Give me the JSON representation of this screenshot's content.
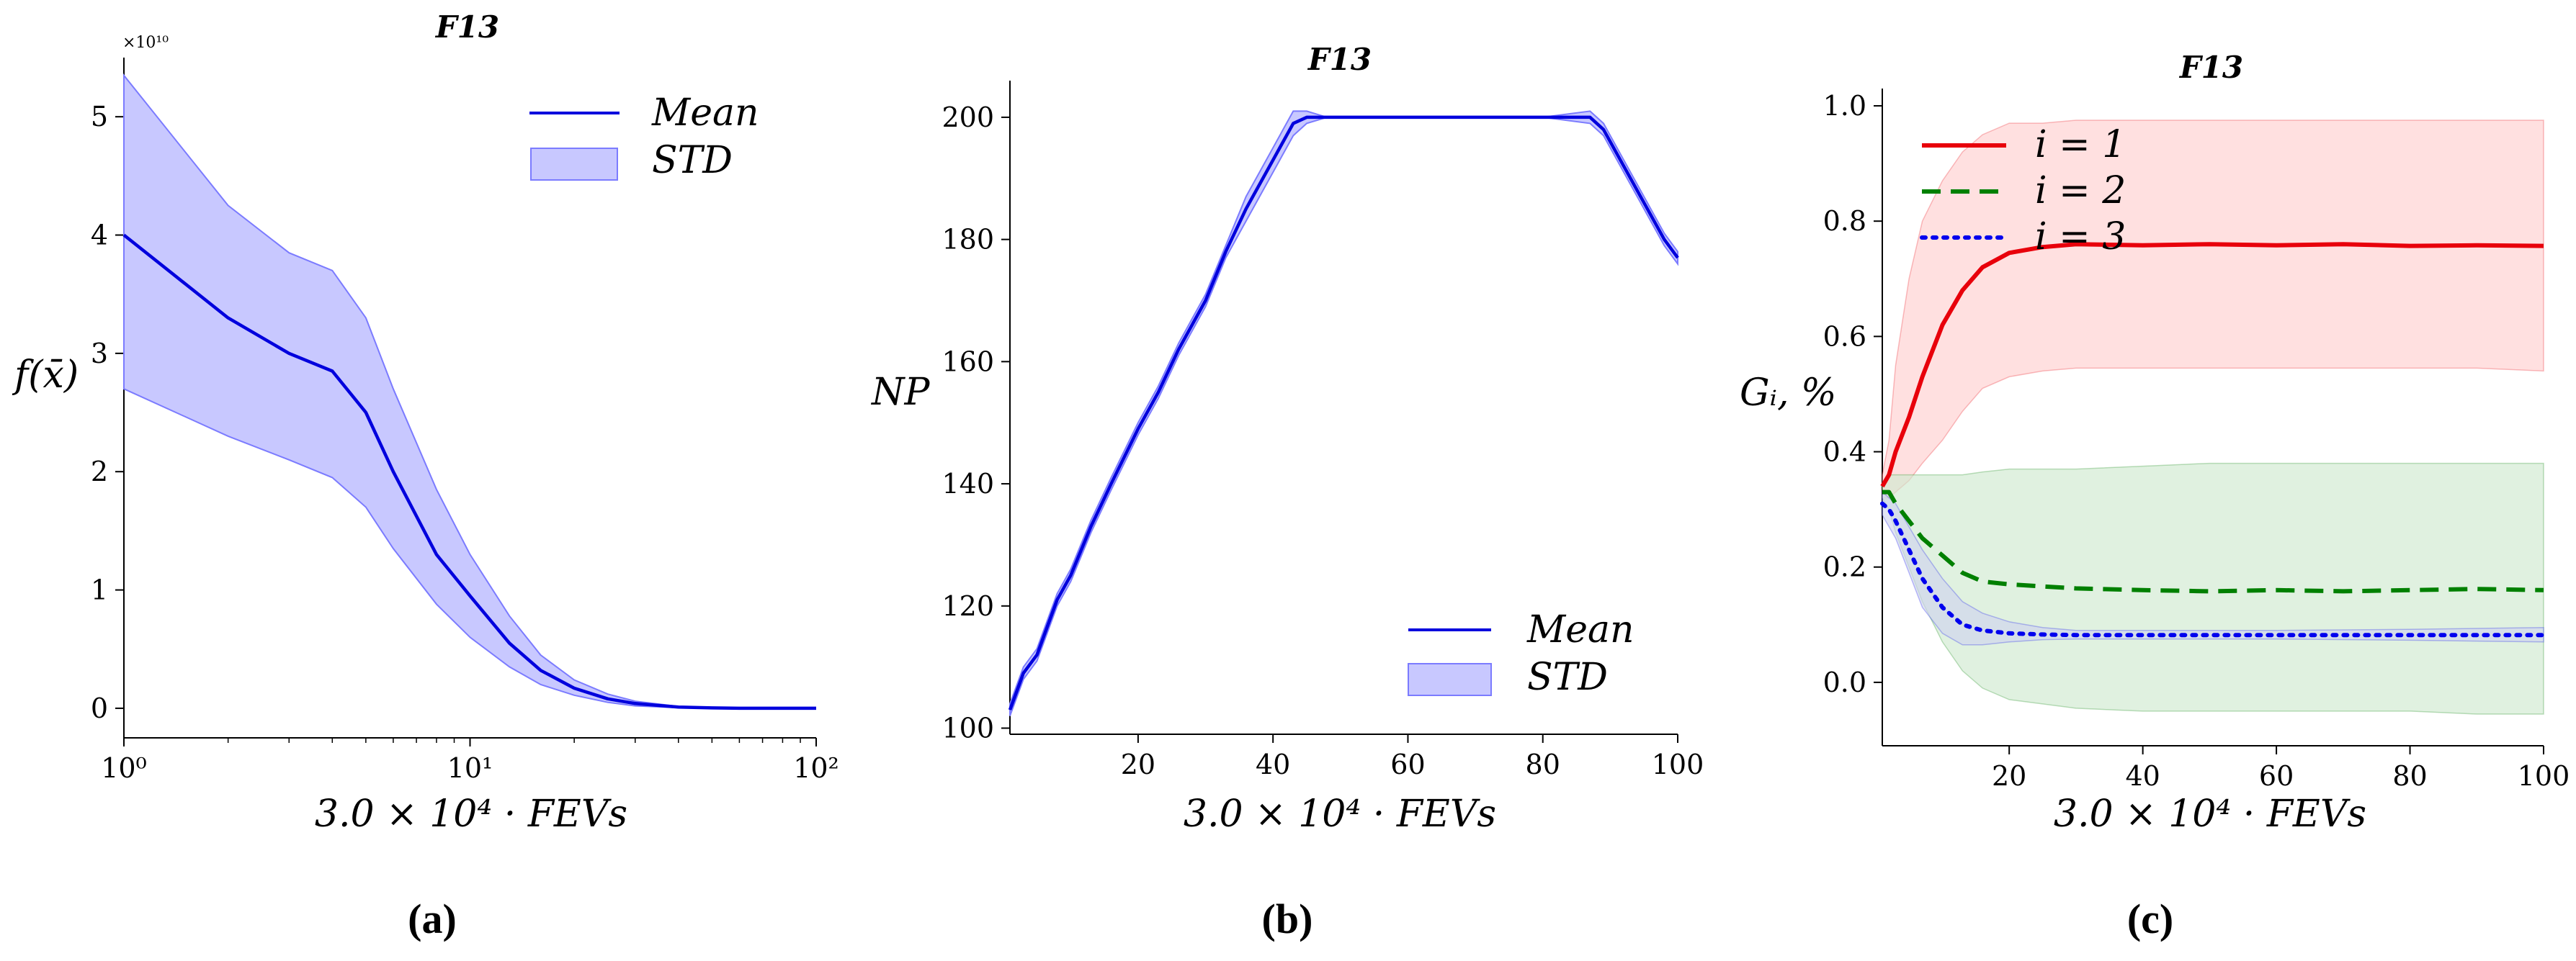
{
  "figure": {
    "captions": [
      "(a)",
      "(b)",
      "(c)"
    ]
  },
  "chart_data": [
    {
      "type": "line",
      "panel": "a",
      "title": "F13",
      "xlabel": "3.0 × 10⁴ · FEVs",
      "ylabel": "f(x̄)",
      "y_multiplier": "×10¹⁰",
      "xscale": "log",
      "xlim": [
        1,
        100
      ],
      "ylim": [
        -0.25,
        5.5
      ],
      "xticks": [
        {
          "v": 1,
          "label": "10⁰"
        },
        {
          "v": 10,
          "label": "10¹"
        },
        {
          "v": 100,
          "label": "10²"
        }
      ],
      "yticks": [
        {
          "v": 0,
          "label": "0"
        },
        {
          "v": 1,
          "label": "1"
        },
        {
          "v": 2,
          "label": "2"
        },
        {
          "v": 3,
          "label": "3"
        },
        {
          "v": 4,
          "label": "4"
        },
        {
          "v": 5,
          "label": "5"
        }
      ],
      "legend": {
        "position": "top-right",
        "entries": [
          "Mean",
          "STD"
        ]
      },
      "line_color": "#0000dd",
      "band_color": "#7b7bff",
      "x": [
        1,
        2,
        3,
        4,
        5,
        6,
        8,
        10,
        13,
        16,
        20,
        25,
        30,
        40,
        50,
        60,
        100
      ],
      "mean": [
        4.0,
        3.3,
        3.0,
        2.85,
        2.5,
        2.0,
        1.3,
        0.95,
        0.55,
        0.32,
        0.17,
        0.08,
        0.04,
        0.01,
        0.003,
        0.0,
        0.0
      ],
      "upper": [
        5.35,
        4.25,
        3.85,
        3.7,
        3.3,
        2.7,
        1.85,
        1.3,
        0.78,
        0.45,
        0.24,
        0.12,
        0.06,
        0.015,
        0.005,
        0.0,
        0.0
      ],
      "lower": [
        2.7,
        2.3,
        2.1,
        1.95,
        1.7,
        1.35,
        0.88,
        0.6,
        0.35,
        0.2,
        0.11,
        0.05,
        0.02,
        0.005,
        0.001,
        0.0,
        0.0
      ]
    },
    {
      "type": "line",
      "panel": "b",
      "title": "F13",
      "xlabel": "3.0 × 10⁴ · FEVs",
      "ylabel": "NP",
      "xlim": [
        1,
        100
      ],
      "ylim": [
        99,
        206
      ],
      "xticks": [
        {
          "v": 20,
          "label": "20"
        },
        {
          "v": 40,
          "label": "40"
        },
        {
          "v": 60,
          "label": "60"
        },
        {
          "v": 80,
          "label": "80"
        },
        {
          "v": 100,
          "label": "100"
        }
      ],
      "yticks": [
        {
          "v": 100,
          "label": "100"
        },
        {
          "v": 120,
          "label": "120"
        },
        {
          "v": 140,
          "label": "140"
        },
        {
          "v": 160,
          "label": "160"
        },
        {
          "v": 180,
          "label": "180"
        },
        {
          "v": 200,
          "label": "200"
        }
      ],
      "legend": {
        "position": "bottom-right",
        "entries": [
          "Mean",
          "STD"
        ]
      },
      "line_color": "#0000dd",
      "band_color": "#7b7bff",
      "x": [
        1,
        3,
        5,
        8,
        10,
        13,
        16,
        20,
        23,
        26,
        30,
        33,
        36,
        40,
        43,
        45,
        48,
        60,
        80,
        87,
        89,
        92,
        95,
        98,
        100
      ],
      "mean": [
        103,
        109,
        112,
        121,
        125,
        133,
        140,
        149,
        155,
        162,
        170,
        178,
        185,
        193,
        199,
        200,
        200,
        200,
        200,
        200,
        198,
        192,
        186,
        180,
        177
      ],
      "upper": [
        104,
        110,
        113,
        122,
        126,
        134,
        141,
        150,
        156,
        163,
        171,
        179,
        187,
        195,
        201,
        201,
        200,
        200,
        200,
        201,
        199,
        193,
        187,
        181,
        178
      ],
      "lower": [
        102,
        108,
        111,
        120,
        124,
        132,
        139,
        148,
        154,
        161,
        169,
        177,
        183,
        191,
        197,
        199,
        200,
        200,
        200,
        199,
        197,
        191,
        185,
        179,
        176
      ]
    },
    {
      "type": "line",
      "panel": "c",
      "title": "F13",
      "xlabel": "3.0 × 10⁴ · FEVs",
      "ylabel": "Gᵢ, %",
      "xlim": [
        1,
        100
      ],
      "ylim": [
        -0.11,
        1.03
      ],
      "xticks": [
        {
          "v": 20,
          "label": "20"
        },
        {
          "v": 40,
          "label": "40"
        },
        {
          "v": 60,
          "label": "60"
        },
        {
          "v": 80,
          "label": "80"
        },
        {
          "v": 100,
          "label": "100"
        }
      ],
      "yticks": [
        {
          "v": 0.0,
          "label": "0.0"
        },
        {
          "v": 0.2,
          "label": "0.2"
        },
        {
          "v": 0.4,
          "label": "0.4"
        },
        {
          "v": 0.6,
          "label": "0.6"
        },
        {
          "v": 0.8,
          "label": "0.8"
        },
        {
          "v": 1.0,
          "label": "1.0"
        }
      ],
      "legend": {
        "position": "top-left",
        "entries": [
          "i = 1",
          "i = 2",
          "i = 3"
        ]
      },
      "series": [
        {
          "name": "i = 1",
          "color": "#e8000b",
          "band_color": "#ffcfcf",
          "dash": "solid",
          "x": [
            1,
            2,
            3,
            5,
            7,
            10,
            13,
            16,
            20,
            25,
            30,
            40,
            50,
            60,
            70,
            80,
            90,
            100
          ],
          "mean": [
            0.34,
            0.36,
            0.4,
            0.46,
            0.53,
            0.62,
            0.68,
            0.72,
            0.745,
            0.755,
            0.76,
            0.758,
            0.76,
            0.758,
            0.76,
            0.757,
            0.758,
            0.757
          ],
          "upper": [
            0.36,
            0.42,
            0.55,
            0.7,
            0.8,
            0.87,
            0.92,
            0.95,
            0.97,
            0.97,
            0.975,
            0.975,
            0.975,
            0.975,
            0.975,
            0.975,
            0.975,
            0.975
          ],
          "lower": [
            0.32,
            0.32,
            0.33,
            0.35,
            0.38,
            0.42,
            0.47,
            0.51,
            0.53,
            0.54,
            0.545,
            0.545,
            0.545,
            0.545,
            0.545,
            0.545,
            0.545,
            0.54
          ]
        },
        {
          "name": "i = 2",
          "color": "#008000",
          "band_color": "#cfe9cf",
          "dash": "dashed",
          "x": [
            1,
            2,
            3,
            5,
            7,
            10,
            13,
            16,
            20,
            30,
            40,
            50,
            60,
            70,
            80,
            90,
            100
          ],
          "mean": [
            0.33,
            0.33,
            0.31,
            0.28,
            0.25,
            0.22,
            0.19,
            0.175,
            0.17,
            0.163,
            0.16,
            0.158,
            0.16,
            0.158,
            0.16,
            0.162,
            0.16
          ],
          "upper": [
            0.34,
            0.36,
            0.36,
            0.36,
            0.36,
            0.36,
            0.36,
            0.365,
            0.37,
            0.37,
            0.375,
            0.38,
            0.38,
            0.38,
            0.38,
            0.38,
            0.38
          ],
          "lower": [
            0.32,
            0.3,
            0.26,
            0.2,
            0.14,
            0.07,
            0.02,
            -0.01,
            -0.03,
            -0.045,
            -0.05,
            -0.05,
            -0.05,
            -0.05,
            -0.05,
            -0.055,
            -0.055
          ]
        },
        {
          "name": "i = 3",
          "color": "#0000ee",
          "band_color": "#cfd4ee",
          "dash": "dotted",
          "x": [
            1,
            2,
            3,
            5,
            7,
            10,
            13,
            16,
            20,
            25,
            30,
            40,
            60,
            80,
            100
          ],
          "mean": [
            0.31,
            0.3,
            0.28,
            0.23,
            0.18,
            0.13,
            0.1,
            0.09,
            0.085,
            0.083,
            0.082,
            0.082,
            0.082,
            0.082,
            0.082
          ],
          "upper": [
            0.33,
            0.32,
            0.31,
            0.27,
            0.23,
            0.18,
            0.14,
            0.12,
            0.105,
            0.095,
            0.09,
            0.09,
            0.09,
            0.092,
            0.095
          ],
          "lower": [
            0.29,
            0.27,
            0.25,
            0.19,
            0.13,
            0.085,
            0.065,
            0.065,
            0.07,
            0.074,
            0.075,
            0.075,
            0.075,
            0.073,
            0.07
          ]
        }
      ]
    }
  ]
}
